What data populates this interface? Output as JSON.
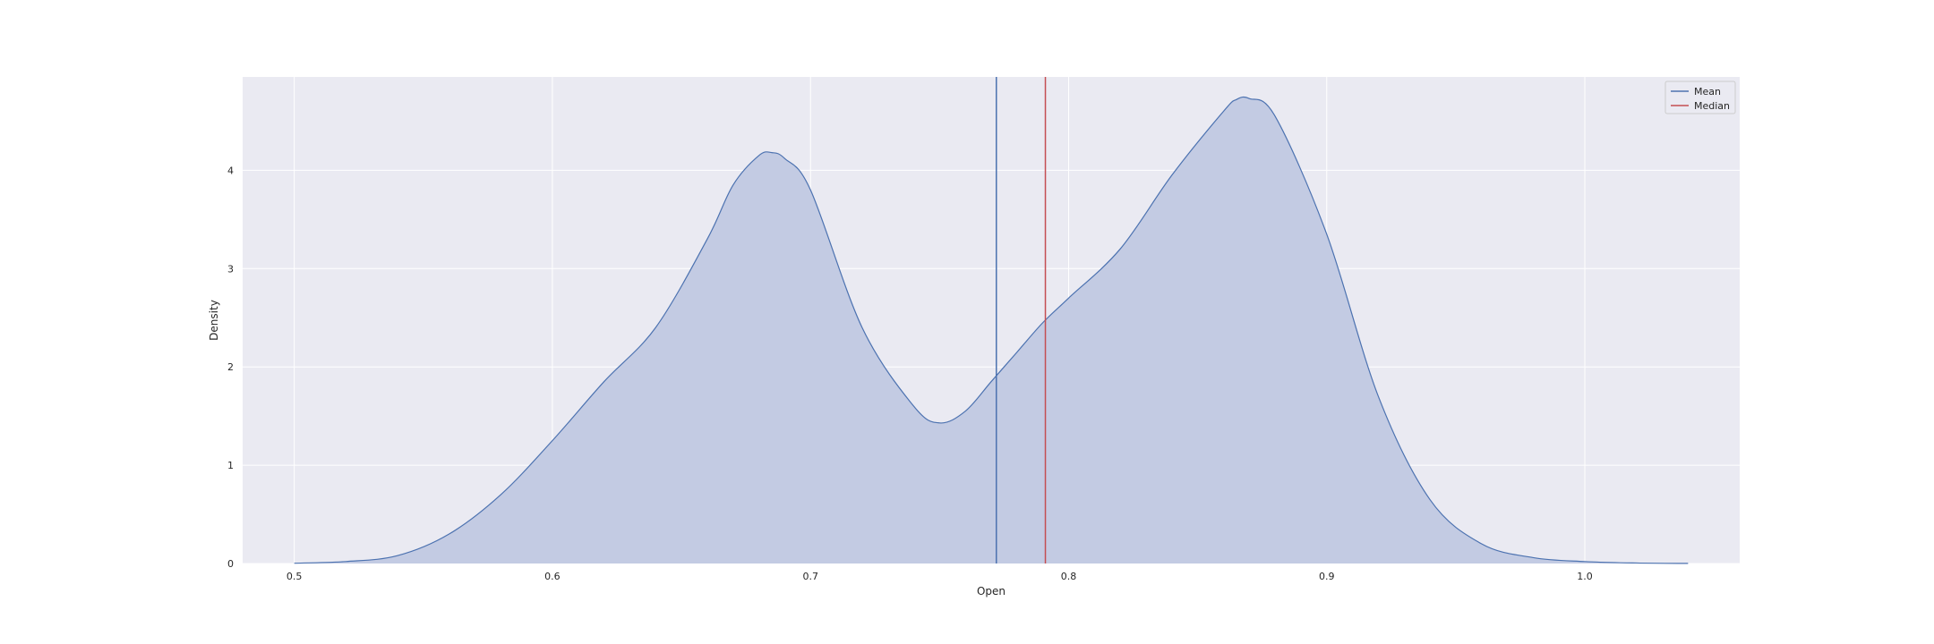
{
  "chart_data": {
    "type": "area",
    "title": "",
    "xlabel": "Open",
    "ylabel": "Density",
    "xlim": [
      0.48,
      1.06
    ],
    "ylim": [
      0,
      4.95
    ],
    "xticks": [
      0.5,
      0.6,
      0.7,
      0.8,
      0.9,
      1.0
    ],
    "xtick_labels": [
      "0.5",
      "0.6",
      "0.7",
      "0.8",
      "0.9",
      "1.0"
    ],
    "yticks": [
      0,
      1,
      2,
      3,
      4
    ],
    "ytick_labels": [
      "0",
      "1",
      "2",
      "3",
      "4"
    ],
    "grid": true,
    "legend_position": "top-right",
    "density_curve": {
      "x": [
        0.5,
        0.52,
        0.54,
        0.56,
        0.58,
        0.6,
        0.62,
        0.64,
        0.66,
        0.67,
        0.68,
        0.685,
        0.69,
        0.7,
        0.72,
        0.74,
        0.75,
        0.76,
        0.77,
        0.78,
        0.79,
        0.8,
        0.82,
        0.84,
        0.86,
        0.865,
        0.87,
        0.88,
        0.9,
        0.92,
        0.94,
        0.96,
        0.98,
        1.0,
        1.02,
        1.04
      ],
      "y": [
        0.003,
        0.02,
        0.08,
        0.3,
        0.7,
        1.25,
        1.85,
        2.4,
        3.3,
        3.85,
        4.15,
        4.18,
        4.12,
        3.8,
        2.4,
        1.6,
        1.43,
        1.55,
        1.85,
        2.15,
        2.45,
        2.7,
        3.2,
        3.95,
        4.6,
        4.72,
        4.73,
        4.55,
        3.35,
        1.7,
        0.65,
        0.2,
        0.06,
        0.02,
        0.005,
        0.001
      ],
      "color": "#4c72b0",
      "fill_color": "#c3cbe3"
    },
    "reference_lines": [
      {
        "name": "Mean",
        "x": 0.772,
        "color": "#4c72b0"
      },
      {
        "name": "Median",
        "x": 0.791,
        "color": "#c44e52"
      }
    ]
  }
}
